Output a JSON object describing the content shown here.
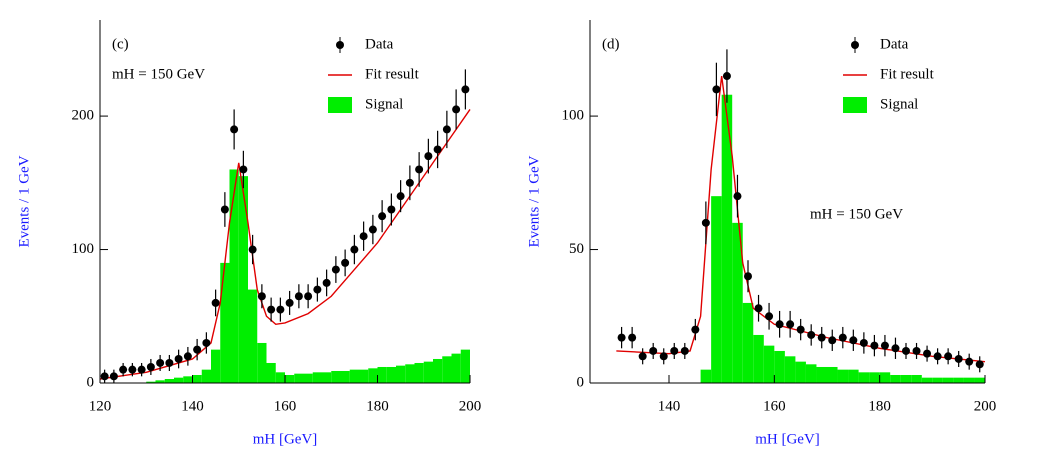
{
  "chart_data": [
    {
      "type": "histogram",
      "label": "(c)",
      "annotation": "mH = 150 GeV",
      "x_label": "mH  [GeV]",
      "y_label": "Events / 1 GeV",
      "xlim": [
        120,
        200
      ],
      "ylim": [
        0,
        272
      ],
      "xticks": [
        120,
        140,
        160,
        180,
        200
      ],
      "yticks": [
        0,
        100,
        200
      ],
      "legend": "upper right",
      "data_points": {
        "name": "Data",
        "color": "#000000",
        "x": [
          121,
          123,
          125,
          127,
          129,
          131,
          133,
          135,
          137,
          139,
          141,
          143,
          145,
          147,
          149,
          151,
          153,
          155,
          157,
          159,
          161,
          163,
          165,
          167,
          169,
          171,
          173,
          175,
          177,
          179,
          181,
          183,
          185,
          187,
          189,
          191,
          193,
          195,
          197,
          199
        ],
        "values": [
          5,
          5,
          10,
          10,
          10,
          12,
          15,
          15,
          18,
          20,
          25,
          30,
          60,
          130,
          190,
          160,
          100,
          65,
          55,
          55,
          60,
          65,
          65,
          70,
          75,
          85,
          90,
          100,
          110,
          115,
          125,
          130,
          140,
          150,
          160,
          170,
          175,
          190,
          205,
          220
        ],
        "errors": [
          5,
          5,
          5,
          5,
          5,
          6,
          6,
          6,
          7,
          7,
          8,
          8,
          10,
          13,
          15,
          14,
          11,
          9,
          9,
          9,
          9,
          9,
          9,
          9,
          10,
          10,
          10,
          11,
          11,
          11,
          12,
          12,
          12,
          13,
          13,
          13,
          14,
          14,
          15,
          15
        ]
      },
      "fit": {
        "name": "Fit result",
        "color": "#e00000",
        "x": [
          120,
          130,
          140,
          144,
          146,
          148,
          150,
          152,
          154,
          156,
          158,
          160,
          165,
          170,
          175,
          180,
          185,
          190,
          195,
          200
        ],
        "values": [
          3,
          8,
          18,
          30,
          60,
          120,
          165,
          120,
          70,
          50,
          44,
          45,
          52,
          65,
          85,
          105,
          130,
          155,
          180,
          205
        ]
      },
      "signal": {
        "name": "Signal",
        "color": "#00ee00",
        "bins": [
          120,
          122,
          124,
          126,
          128,
          130,
          132,
          134,
          136,
          138,
          140,
          142,
          144,
          146,
          148,
          150,
          152,
          154,
          156,
          158,
          160,
          162,
          164,
          166,
          168,
          170,
          172,
          174,
          176,
          178,
          180,
          182,
          184,
          186,
          188,
          190,
          192,
          194,
          196,
          198,
          200
        ],
        "values": [
          0,
          0,
          0,
          0,
          0,
          1,
          2,
          3,
          4,
          5,
          6,
          10,
          25,
          90,
          160,
          155,
          70,
          30,
          15,
          8,
          6,
          7,
          7,
          8,
          8,
          9,
          9,
          10,
          10,
          11,
          12,
          12,
          13,
          14,
          15,
          16,
          18,
          20,
          22,
          25
        ]
      }
    },
    {
      "type": "histogram",
      "label": "(d)",
      "annotation": "mH = 150 GeV",
      "x_label": "mH  [GeV]",
      "y_label": "Events / 1 GeV",
      "xlim": [
        125,
        200
      ],
      "ylim": [
        0,
        136
      ],
      "xticks": [
        140,
        160,
        180,
        200
      ],
      "yticks": [
        0,
        50,
        100
      ],
      "legend": "upper right",
      "data_points": {
        "name": "Data",
        "color": "#000000",
        "x": [
          131,
          133,
          135,
          137,
          139,
          141,
          143,
          145,
          147,
          149,
          151,
          153,
          155,
          157,
          159,
          161,
          163,
          165,
          167,
          169,
          171,
          173,
          175,
          177,
          179,
          181,
          183,
          185,
          187,
          189,
          191,
          193,
          195,
          197,
          199
        ],
        "values": [
          17,
          17,
          10,
          12,
          10,
          12,
          12,
          20,
          60,
          110,
          115,
          70,
          40,
          28,
          25,
          22,
          22,
          20,
          18,
          17,
          16,
          17,
          16,
          15,
          14,
          14,
          13,
          12,
          12,
          11,
          10,
          10,
          9,
          8,
          7
        ],
        "errors": [
          4,
          4,
          3,
          3,
          3,
          3,
          3,
          4,
          8,
          10,
          10,
          8,
          6,
          5,
          5,
          5,
          5,
          4,
          4,
          4,
          4,
          4,
          4,
          4,
          4,
          4,
          4,
          3,
          3,
          3,
          3,
          3,
          3,
          3,
          3
        ]
      },
      "fit": {
        "name": "Fit result",
        "color": "#e00000",
        "x": [
          130,
          140,
          144,
          146,
          148,
          150,
          152,
          154,
          156,
          160,
          170,
          180,
          190,
          200
        ],
        "values": [
          12,
          11,
          12,
          25,
          80,
          115,
          85,
          45,
          28,
          22,
          17,
          13,
          10,
          8
        ]
      },
      "signal": {
        "name": "Signal",
        "color": "#00ee00",
        "bins": [
          130,
          132,
          134,
          136,
          138,
          140,
          142,
          144,
          146,
          148,
          150,
          152,
          154,
          156,
          158,
          160,
          162,
          164,
          166,
          168,
          170,
          172,
          174,
          176,
          178,
          180,
          182,
          184,
          186,
          188,
          190,
          192,
          194,
          196,
          198,
          200
        ],
        "values": [
          0,
          0,
          0,
          0,
          0,
          0,
          0,
          0,
          5,
          70,
          108,
          60,
          30,
          18,
          14,
          12,
          10,
          8,
          7,
          6,
          6,
          5,
          5,
          4,
          4,
          4,
          3,
          3,
          3,
          2,
          2,
          2,
          2,
          2,
          2
        ]
      }
    }
  ]
}
